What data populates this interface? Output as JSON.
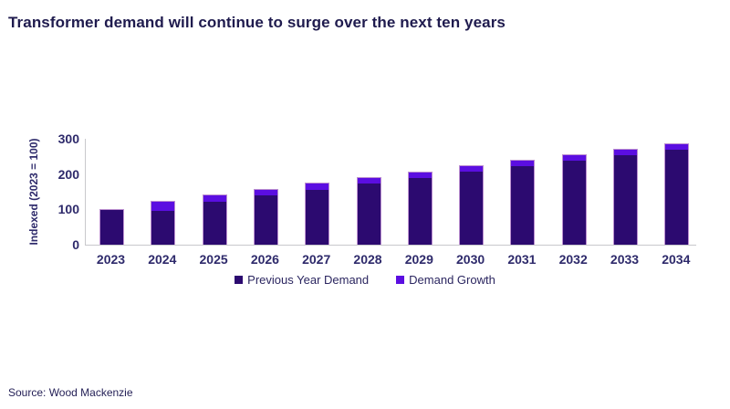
{
  "title": "Transformer demand will continue to surge over the next ten years",
  "source": "Source: Wood Mackenzie",
  "colors": {
    "previous_demand": "#2c0a70",
    "demand_growth": "#5b0ee1",
    "bar_outline": "#d8a8e0",
    "axis_line": "#c8c8cc",
    "text_navy": "#2e2a6b",
    "title_navy": "#1f1b4e"
  },
  "chart_data": {
    "type": "bar",
    "stacked": true,
    "title": "Transformer demand will continue to surge over the next ten years",
    "xlabel": "",
    "ylabel": "Indexed (2023 = 100)",
    "ylim": [
      0,
      300
    ],
    "yticks": [
      0,
      100,
      200,
      300
    ],
    "grid": false,
    "legend_position": "bottom",
    "categories": [
      "2023",
      "2024",
      "2025",
      "2026",
      "2027",
      "2028",
      "2029",
      "2030",
      "2031",
      "2032",
      "2033",
      "2034"
    ],
    "series": [
      {
        "name": "Previous Year Demand",
        "color": "#2c0a70",
        "values": [
          100,
          100,
          125,
          142,
          158,
          176,
          192,
          208,
          224,
          240,
          256,
          271
        ]
      },
      {
        "name": "Demand Growth",
        "color": "#5b0ee1",
        "values": [
          0,
          25,
          17,
          16,
          18,
          16,
          16,
          16,
          16,
          16,
          15,
          15
        ]
      }
    ],
    "totals": [
      100,
      125,
      142,
      158,
      176,
      192,
      208,
      224,
      240,
      256,
      271,
      286
    ]
  }
}
